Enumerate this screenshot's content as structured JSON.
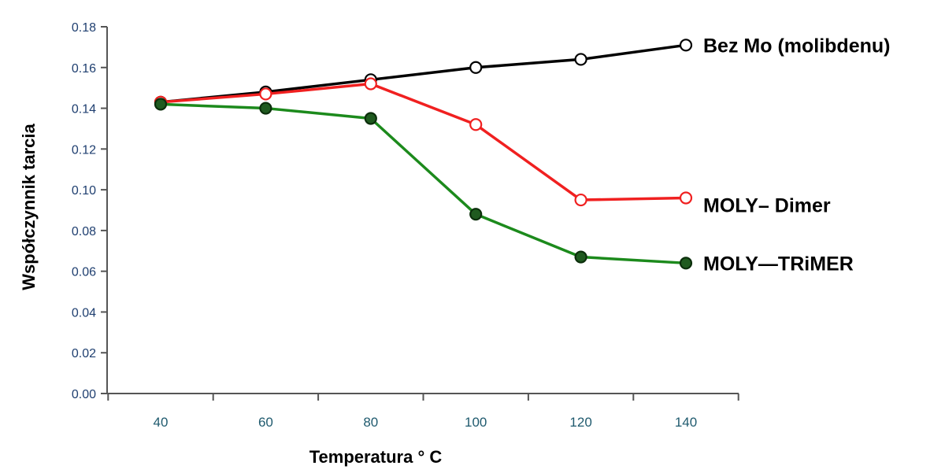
{
  "chart_data": {
    "type": "line",
    "title": "",
    "xlabel": "Temperatura ° C",
    "ylabel": "Współczynnik tarcia",
    "x": [
      40,
      60,
      80,
      100,
      120,
      140
    ],
    "x_tick_labels": [
      "40",
      "60",
      "80",
      "100",
      "120",
      "140"
    ],
    "y_tick_labels": [
      "0.00",
      "0.02",
      "0.04",
      "0.06",
      "0.08",
      "0.10",
      "0.12",
      "0.14",
      "0.16",
      "0.18"
    ],
    "ylim": [
      0,
      0.18
    ],
    "xlim": [
      40,
      140
    ],
    "grid": false,
    "legend": "labels at line ends, right side",
    "series": [
      {
        "name": "Bez Mo (molibdenu)",
        "values": [
          0.143,
          0.148,
          0.154,
          0.16,
          0.164,
          0.171
        ],
        "color": "#000000",
        "marker_fill": "#ffffff",
        "marker": "open-circle"
      },
      {
        "name": "MOLY– Dimer",
        "values": [
          0.143,
          0.147,
          0.152,
          0.132,
          0.095,
          0.096
        ],
        "color": "#f02020",
        "marker_fill": "#ffffff",
        "marker": "open-circle"
      },
      {
        "name": "MOLY—TRiMER",
        "values": [
          0.142,
          0.14,
          0.135,
          0.088,
          0.067,
          0.064
        ],
        "color": "#1c8a1c",
        "marker_fill": "#1f5a1f",
        "marker": "filled-circle"
      }
    ]
  }
}
